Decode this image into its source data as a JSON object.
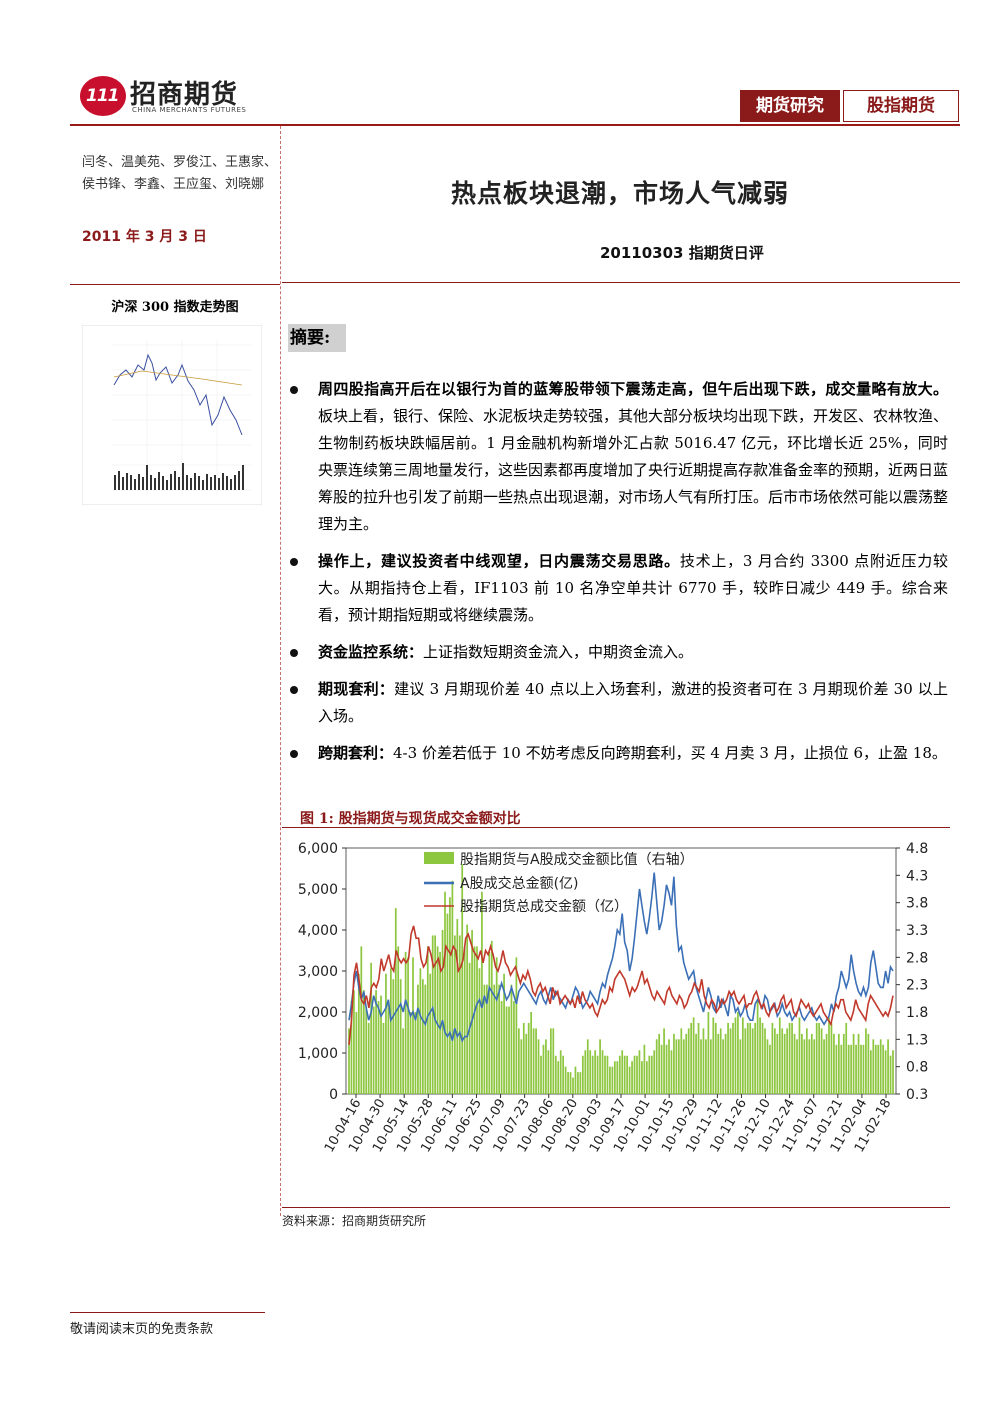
{
  "header": {
    "logo_text": "招商期货",
    "logo_en": "CHINA MERCHANTS FUTURES",
    "logo_mark": "111",
    "tag_primary": "期货研究",
    "tag_secondary": "股指期货"
  },
  "sidebar": {
    "authors": "闫冬、温美苑、罗俊江、王惠家、侯书锋、李鑫、王应玺、刘晓娜",
    "date": "2011 年 3 月 3 日",
    "mini_chart_title": "沪深 300 指数走势图"
  },
  "main": {
    "title": "热点板块退潮，市场人气减弱",
    "subtitle": "20110303 指期货日评",
    "summary_label": "摘要:",
    "bullets": [
      {
        "lead": "周四股指高开后在以银行为首的蓝筹股带领下震荡走高，但午后出现下跌，成交量略有放大。",
        "body": "板块上看，银行、保险、水泥板块走势较强，其他大部分板块均出现下跌，开发区、农林牧渔、生物制药板块跌幅居前。1 月金融机构新增外汇占款 5016.47 亿元，环比增长近 25%，同时央票连续第三周地量发行，这些因素都再度增加了央行近期提高存款准备金率的预期，近两日蓝筹股的拉升也引发了前期一些热点出现退潮，对市场人气有所打压。后市市场依然可能以震荡整理为主。"
      },
      {
        "lead": "操作上，建议投资者中线观望，日内震荡交易思路。",
        "body": "技术上，3 月合约 3300 点附近压力较大。从期指持仓上看，IF1103 前 10 名净空单共计 6770 手，较昨日减少 449 手。综合来看，预计期指短期或将继续震荡。"
      },
      {
        "lead": "资金监控系统：",
        "body": "上证指数短期资金流入，中期资金流入。"
      },
      {
        "lead": "期现套利：",
        "body": "建议 3 月期现价差 40 点以上入场套利，激进的投资者可在 3 月期现价差 30 以上入场。"
      },
      {
        "lead": "跨期套利：",
        "body": "4-3 价差若低于 10 不妨考虑反向跨期套利，买 4 月卖 3 月，止损位 6，止盈 18。"
      }
    ],
    "figure_title": "图 1:  股指期货与现货成交金额对比",
    "source": "资料来源：招商期货研究所"
  },
  "footer": {
    "disclaimer": "敬请阅读末页的免责条款"
  },
  "colors": {
    "accent": "#8b1a1a",
    "bar": "#8dc63f",
    "blue": "#3b6fb6",
    "red": "#c0392b"
  },
  "chart_data": {
    "type": "bar",
    "title": "图 1:  股指期货与现货成交金额对比",
    "x_tick_labels": [
      "10-04-16",
      "10-04-30",
      "10-05-14",
      "10-05-28",
      "10-06-11",
      "10-06-25",
      "10-07-09",
      "10-07-23",
      "10-08-06",
      "10-08-20",
      "10-09-03",
      "10-09-17",
      "10-10-01",
      "10-10-15",
      "10-10-29",
      "10-11-12",
      "10-11-26",
      "10-12-10",
      "10-12-24",
      "11-01-07",
      "11-01-21",
      "11-02-04",
      "11-02-18"
    ],
    "y_left": {
      "ticks": [
        "0",
        "1,000",
        "2,000",
        "3,000",
        "4,000",
        "5,000",
        "6,000"
      ],
      "range": [
        0,
        6000
      ]
    },
    "y_right": {
      "ticks": [
        "0.3",
        "0.8",
        "1.3",
        "1.8",
        "2.3",
        "2.8",
        "3.3",
        "3.8",
        "4.3",
        "4.8"
      ],
      "range": [
        0.3,
        4.8
      ]
    },
    "legend": [
      {
        "name": "股指期货与A股成交金额比值（右轴）",
        "type": "bar",
        "color": "#8dc63f"
      },
      {
        "name": "A股成交总金额(亿)",
        "type": "line",
        "color": "#3b6fb6"
      },
      {
        "name": "股指期货总成交金额（亿）",
        "type": "line",
        "color": "#c0392b"
      }
    ],
    "legend_position": "top",
    "series": [
      {
        "name": "股指期货与A股成交金额比值（右轴）",
        "axis": "right",
        "type": "bar",
        "values": [
          1.5,
          2.0,
          2.2,
          1.8,
          2.5,
          3.0,
          2.2,
          1.9,
          1.6,
          2.7,
          1.9,
          2.2,
          2.0,
          2.1,
          1.6,
          2.5,
          2.0,
          2.6,
          2.4,
          3.7,
          3.0,
          2.4,
          1.5,
          2.9,
          2.8,
          1.8,
          2.8,
          1.8,
          2.3,
          2.6,
          2.4,
          2.3,
          3.0,
          2.5,
          3.2,
          3.2,
          3.0,
          2.9,
          3.3,
          4.0,
          3.6,
          3.9,
          4.2,
          3.2,
          3.5,
          3.2,
          4.5,
          3.0,
          3.4,
          2.7,
          3.3,
          3.0,
          3.0,
          2.6,
          4.0,
          2.3,
          2.3,
          2.9,
          3.1,
          2.3,
          2.8,
          2.3,
          2.0,
          2.5,
          1.9,
          1.9,
          2.3,
          2.0,
          2.8,
          1.5,
          1.3,
          1.6,
          1.4,
          1.6,
          1.8,
          1.5,
          1.5,
          1.3,
          1.0,
          1.2,
          1.3,
          1.1,
          1.5,
          1.5,
          1.0,
          0.9,
          1.1,
          1.0,
          0.8,
          0.7,
          0.7,
          0.6,
          0.8,
          0.7,
          0.7,
          1.0,
          1.1,
          1.3,
          1.1,
          1.0,
          1.1,
          1.0,
          1.3,
          1.1,
          1.0,
          1.0,
          0.8,
          0.8,
          0.9,
          0.9,
          1.0,
          1.1,
          1.0,
          1.0,
          0.8,
          0.9,
          1.0,
          1.0,
          1.1,
          0.9,
          1.2,
          0.9,
          1.0,
          1.0,
          1.1,
          1.3,
          1.4,
          1.2,
          1.5,
          1.2,
          1.3,
          1.1,
          1.4,
          1.3,
          1.3,
          1.5,
          1.3,
          1.4,
          1.5,
          1.6,
          1.7,
          1.4,
          1.6,
          1.3,
          1.5,
          1.3,
          1.8,
          1.3,
          1.7,
          1.6,
          1.4,
          1.5,
          1.3,
          1.4,
          1.6,
          1.5,
          1.6,
          1.7,
          1.8,
          1.3,
          1.7,
          1.5,
          1.6,
          1.6,
          1.5,
          1.6,
          2.0,
          1.7,
          1.6,
          1.5,
          1.3,
          1.2,
          1.6,
          1.5,
          1.4,
          1.7,
          1.5,
          1.4,
          1.5,
          1.6,
          1.6,
          1.4,
          1.3,
          1.7,
          1.4,
          1.3,
          1.5,
          1.3,
          1.4,
          1.3,
          1.6,
          1.6,
          1.5,
          1.3,
          1.4,
          1.7,
          1.6,
          1.4,
          1.2,
          1.4,
          1.2,
          1.4,
          1.6,
          1.2,
          1.2,
          1.4,
          1.2,
          1.4,
          1.2,
          1.2,
          1.5,
          1.4,
          1.1,
          1.3,
          1.2,
          1.2,
          1.3,
          1.2,
          1.1,
          1.3,
          1.0,
          1.1
        ]
      },
      {
        "name": "A股成交总金额(亿)",
        "axis": "left",
        "type": "line",
        "values": [
          1800,
          2200,
          2700,
          3000,
          2600,
          2300,
          2500,
          2100,
          1800,
          2000,
          2400,
          2200,
          2100,
          1900,
          2000,
          2100,
          2300,
          1800,
          1900,
          2000,
          2100,
          2200,
          2000,
          2300,
          2100,
          1900,
          2000,
          1800,
          2100,
          1900,
          1800,
          1700,
          1900,
          2000,
          2100,
          1800,
          1700,
          1600,
          1800,
          1500,
          1400,
          1500,
          1300,
          1600,
          1400,
          1500,
          1300,
          1400,
          1400,
          1600,
          1800,
          2000,
          2200,
          2300,
          2100,
          2400,
          2200,
          2600,
          2500,
          2400,
          2300,
          2500,
          2700,
          2500,
          2300,
          2400,
          2600,
          2400,
          2200,
          2500,
          2600,
          2700,
          2600,
          2500,
          2400,
          2300,
          2200,
          2400,
          2500,
          2300,
          2200,
          2400,
          2600,
          2300,
          2500,
          2400,
          2300,
          2200,
          2100,
          2300,
          2200,
          2400,
          2600,
          2500,
          2300,
          2100,
          2200,
          2300,
          2500,
          2400,
          2300,
          2200,
          2500,
          2700,
          2600,
          2900,
          3100,
          3300,
          3600,
          4000,
          3900,
          4400,
          3700,
          3500,
          3000,
          3300,
          3800,
          4400,
          5000,
          4600,
          4200,
          3900,
          4300,
          4800,
          5400,
          4700,
          4000,
          4200,
          4600,
          5100,
          4900,
          4600,
          5300,
          4100,
          3500,
          3600,
          3200,
          3000,
          2800,
          2900,
          3000,
          2600,
          2400,
          2200,
          2000,
          2300,
          2600,
          2400,
          2100,
          2000,
          2400,
          2100,
          2300,
          2100,
          1900,
          2400,
          2300,
          2000,
          2100,
          1900,
          2000,
          2200,
          1900,
          1800,
          1800,
          2200,
          2300,
          2200,
          2100,
          2400,
          2300,
          2000,
          2100,
          2200,
          1900,
          2000,
          2200,
          2000,
          1900,
          2000,
          1800,
          1900,
          2000,
          2100,
          1900,
          1800,
          1900,
          2000,
          2100,
          1900,
          1800,
          1900,
          1800,
          1700,
          1800,
          1900,
          2200,
          2000,
          2400,
          2600,
          3000,
          2800,
          2600,
          2800,
          3400,
          3000,
          2700,
          2500,
          2400,
          2600,
          2400,
          2600,
          3200,
          3500,
          3100,
          2700,
          2600,
          2600,
          3000,
          2700,
          3100,
          3000
        ]
      },
      {
        "name": "股指期货总成交金额（亿）",
        "axis": "left",
        "type": "line",
        "values": [
          1200,
          1800,
          2900,
          3200,
          2800,
          2300,
          2200,
          2400,
          2100,
          2600,
          2700,
          2600,
          2800,
          3300,
          3000,
          3200,
          3400,
          3100,
          3000,
          3500,
          3300,
          3200,
          3300,
          3200,
          3300,
          3900,
          4100,
          3800,
          3800,
          3300,
          3100,
          3200,
          3600,
          3400,
          3100,
          3200,
          3300,
          3000,
          3100,
          3600,
          3500,
          3400,
          3600,
          3500,
          3000,
          3100,
          3300,
          3800,
          3900,
          3700,
          3500,
          3400,
          3300,
          3500,
          3200,
          3500,
          3400,
          3600,
          3400,
          3100,
          3000,
          3200,
          3500,
          3200,
          3100,
          2900,
          3000,
          3100,
          2900,
          2700,
          2900,
          2800,
          3000,
          2800,
          2500,
          2400,
          2600,
          2700,
          2500,
          2600,
          2400,
          2200,
          2600,
          2400,
          2500,
          2200,
          2300,
          2400,
          2300,
          2200,
          2300,
          2100,
          2400,
          2200,
          2500,
          2300,
          2200,
          2100,
          2200,
          2000,
          1900,
          2100,
          2300,
          2200,
          2300,
          2600,
          2500,
          2800,
          2900,
          3000,
          2900,
          2800,
          2600,
          2400,
          2600,
          2500,
          2600,
          2800,
          3000,
          2700,
          2800,
          2600,
          2400,
          2300,
          2500,
          2400,
          2300,
          2200,
          2500,
          2600,
          2400,
          2300,
          2200,
          2400,
          2300,
          2100,
          2200,
          2400,
          2500,
          2700,
          2600,
          2500,
          2800,
          2400,
          2200,
          2100,
          2300,
          2200,
          2000,
          2100,
          2300,
          2200,
          2300,
          2500,
          2400,
          2500,
          2300,
          2200,
          2300,
          2400,
          2100,
          2200,
          2200,
          2400,
          2500,
          2300,
          2100,
          2200,
          2000,
          1900,
          2100,
          2200,
          2000,
          2100,
          2300,
          2400,
          2100,
          2200,
          2300,
          2000,
          1900,
          2100,
          2300,
          2200,
          2100,
          2200,
          2000,
          1900,
          2000,
          2100,
          2200,
          2000,
          1900,
          1800,
          1700,
          2000,
          2200,
          2100,
          2300,
          2300,
          2000,
          1900,
          1800,
          2000,
          2300,
          2100,
          2000,
          1900,
          1800,
          2200,
          2400,
          2300,
          2200,
          2100,
          2000,
          1900,
          2000,
          1900,
          2100,
          2400
        ]
      }
    ]
  }
}
